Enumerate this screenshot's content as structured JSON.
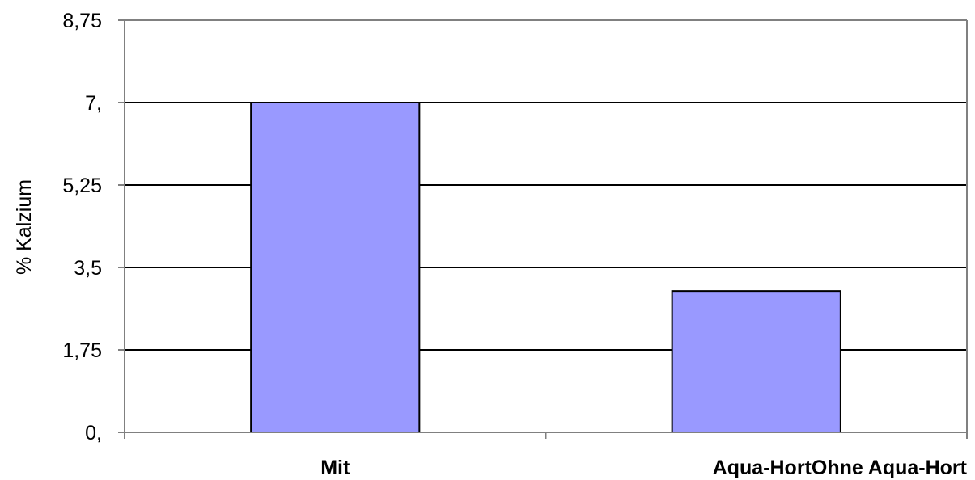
{
  "chart_data": {
    "type": "bar",
    "categories": [
      "Mit",
      "Ohne Aqua-Hort"
    ],
    "category_labels_as_printed": [
      "Mit",
      "Aqua-HortOhne Aqua-Hort"
    ],
    "values": [
      7.0,
      3.0
    ],
    "ylabel": "% Kalzium",
    "xlabel": "",
    "ylim": [
      0,
      8.75
    ],
    "yticks": [
      0,
      1.75,
      3.5,
      5.25,
      7,
      8.75
    ],
    "ytick_labels": [
      "0,",
      "1,75",
      "3,5",
      "5,25",
      "7,",
      "8,75"
    ],
    "grid": true,
    "legend": "none",
    "colors": {
      "bar_fill": "#9999ff",
      "bar_stroke": "#000000",
      "gridline": "#000000",
      "axis": "#808080"
    }
  }
}
